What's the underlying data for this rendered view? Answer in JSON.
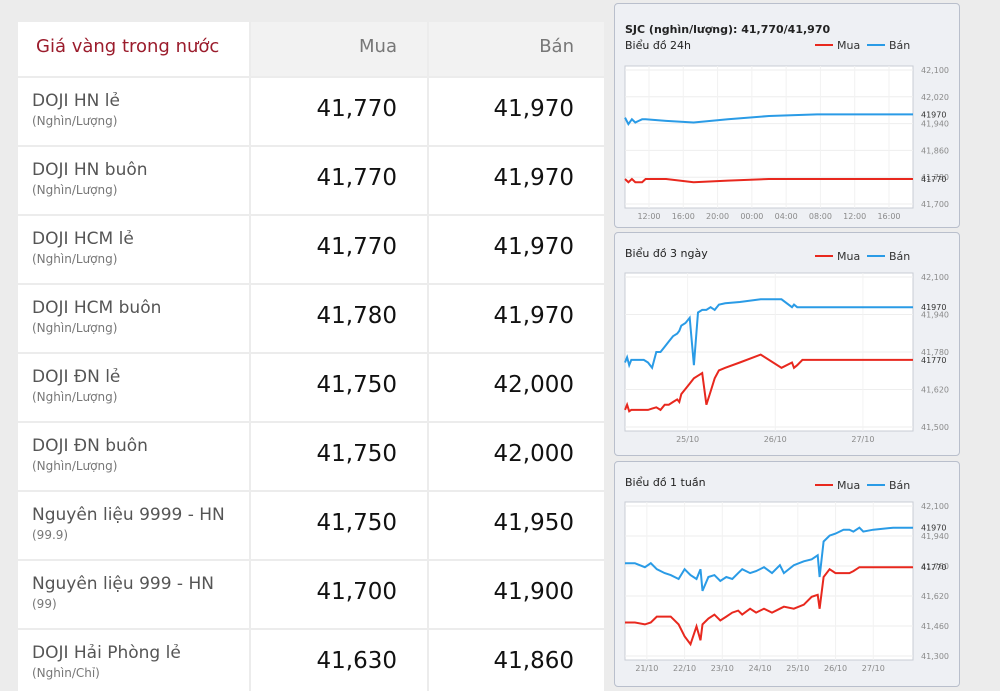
{
  "table": {
    "header": {
      "name": "Giá vàng trong nước",
      "buy": "Mua",
      "sell": "Bán"
    },
    "rows": [
      {
        "name": "DOJI HN lẻ",
        "unit": "(Nghìn/Lượng)",
        "buy": "41,770",
        "sell": "41,970"
      },
      {
        "name": "DOJI HN buôn",
        "unit": "(Nghìn/Lượng)",
        "buy": "41,770",
        "sell": "41,970"
      },
      {
        "name": "DOJI HCM lẻ",
        "unit": "(Nghìn/Lượng)",
        "buy": "41,770",
        "sell": "41,970"
      },
      {
        "name": "DOJI HCM buôn",
        "unit": "(Nghìn/Lượng)",
        "buy": "41,780",
        "sell": "41,970"
      },
      {
        "name": "DOJI ĐN lẻ",
        "unit": "(Nghìn/Lượng)",
        "buy": "41,750",
        "sell": "42,000"
      },
      {
        "name": "DOJI ĐN buôn",
        "unit": "(Nghìn/Lượng)",
        "buy": "41,750",
        "sell": "42,000"
      },
      {
        "name": "Nguyên liệu 9999 - HN",
        "unit": "(99.9)",
        "buy": "41,750",
        "sell": "41,950"
      },
      {
        "name": "Nguyên liệu 999 - HN",
        "unit": "(99)",
        "buy": "41,700",
        "sell": "41,900"
      },
      {
        "name": "DOJI Hải Phòng lẻ",
        "unit": "(Nghìn/Chỉ)",
        "buy": "41,630",
        "sell": "41,860"
      }
    ]
  },
  "colors": {
    "buy": "#e8281e",
    "sell": "#2a9be6",
    "header_red": "#9b1c2c"
  },
  "chart_data": [
    {
      "type": "line",
      "title": "SJC (nghìn/lượng): 41,770/41,970",
      "subtitle": "Biểu đồ 24h",
      "legend": {
        "position": "top-right",
        "items": [
          "Mua",
          "Bán"
        ]
      },
      "x": [
        0,
        1,
        2,
        3,
        4,
        5,
        6,
        12,
        20,
        30,
        42,
        56,
        84
      ],
      "xlim": [
        0,
        84
      ],
      "xticks": [
        {
          "x": 7,
          "label": "12:00"
        },
        {
          "x": 17,
          "label": "16:00"
        },
        {
          "x": 27,
          "label": "20:00"
        },
        {
          "x": 37,
          "label": "00:00"
        },
        {
          "x": 47,
          "label": "04:00"
        },
        {
          "x": 57,
          "label": "08:00"
        },
        {
          "x": 67,
          "label": "12:00"
        },
        {
          "x": 77,
          "label": "16:00"
        }
      ],
      "ylim": [
        41680,
        42120
      ],
      "yticks": [
        "42,100",
        "42,020",
        "41,940",
        "41,860",
        "41,780",
        "41,700"
      ],
      "grid": true,
      "series": [
        {
          "name": "Mua",
          "color": "#e8281e",
          "values": [
            41770,
            41760,
            41770,
            41760,
            41760,
            41760,
            41770,
            41770,
            41760,
            41765,
            41770,
            41770,
            41770
          ],
          "last_label": "41770"
        },
        {
          "name": "Bán",
          "color": "#2a9be6",
          "values": [
            41960,
            41940,
            41955,
            41945,
            41950,
            41955,
            41955,
            41950,
            41945,
            41955,
            41965,
            41970,
            41970
          ],
          "last_label": "41970"
        }
      ]
    },
    {
      "type": "line",
      "subtitle": "Biểu đồ 3 ngày",
      "legend": {
        "position": "top-right",
        "items": [
          "Mua",
          "Bán"
        ]
      },
      "x": [
        0,
        2,
        4,
        6,
        10,
        14,
        18,
        22,
        26,
        30,
        34,
        38,
        42,
        46,
        50,
        52,
        54,
        58,
        62,
        66,
        70,
        74,
        78,
        82,
        86,
        90,
        96,
        110,
        130,
        150,
        160,
        162,
        165,
        170,
        200,
        240,
        276
      ],
      "xlim": [
        0,
        276
      ],
      "xticks": [
        {
          "x": 60,
          "label": "25/10"
        },
        {
          "x": 144,
          "label": "26/10"
        },
        {
          "x": 228,
          "label": "27/10"
        }
      ],
      "ylim": [
        41500,
        42100
      ],
      "yticks": [
        "42,100",
        "41,940",
        "41,780",
        "41,620",
        "41,500"
      ],
      "grid": true,
      "series": [
        {
          "name": "Mua",
          "color": "#e8281e",
          "values": [
            41580,
            41600,
            41575,
            41580,
            41580,
            41580,
            41580,
            41580,
            41585,
            41590,
            41580,
            41600,
            41600,
            41610,
            41620,
            41610,
            41640,
            41660,
            41680,
            41700,
            41710,
            41720,
            41600,
            41650,
            41700,
            41730,
            41740,
            41760,
            41790,
            41740,
            41760,
            41740,
            41750,
            41770,
            41770,
            41770,
            41770
          ],
          "last_label": "41770"
        },
        {
          "name": "Bán",
          "color": "#2a9be6",
          "values": [
            41760,
            41780,
            41750,
            41770,
            41770,
            41770,
            41770,
            41760,
            41740,
            41800,
            41800,
            41820,
            41840,
            41860,
            41870,
            41880,
            41900,
            41910,
            41930,
            41750,
            41950,
            41960,
            41960,
            41970,
            41960,
            41980,
            41985,
            41990,
            42000,
            42000,
            41970,
            41980,
            41970,
            41970,
            41970,
            41970,
            41970
          ],
          "last_label": "41970"
        }
      ]
    },
    {
      "type": "line",
      "subtitle": "Biểu đồ 1 tuần",
      "legend": {
        "position": "top-right",
        "items": [
          "Mua",
          "Bán"
        ]
      },
      "x": [
        0,
        10,
        20,
        26,
        32,
        40,
        46,
        54,
        60,
        66,
        72,
        76,
        78,
        84,
        90,
        96,
        102,
        108,
        114,
        118,
        126,
        132,
        140,
        148,
        156,
        160,
        170,
        180,
        188,
        194,
        196,
        200,
        206,
        212,
        220,
        226,
        230,
        236,
        240,
        250,
        270,
        290
      ],
      "xlim": [
        0,
        290
      ],
      "xticks": [
        {
          "x": 22,
          "label": "21/10"
        },
        {
          "x": 60,
          "label": "22/10"
        },
        {
          "x": 98,
          "label": "23/10"
        },
        {
          "x": 136,
          "label": "24/10"
        },
        {
          "x": 174,
          "label": "25/10"
        },
        {
          "x": 212,
          "label": "26/10"
        },
        {
          "x": 250,
          "label": "27/10"
        }
      ],
      "ylim": [
        41300,
        42100
      ],
      "yticks": [
        "42,100",
        "41,940",
        "41,780",
        "41,620",
        "41,460",
        "41,300"
      ],
      "grid": true,
      "series": [
        {
          "name": "Mua",
          "color": "#e8281e",
          "values": [
            41490,
            41490,
            41480,
            41490,
            41520,
            41520,
            41520,
            41480,
            41420,
            41380,
            41470,
            41400,
            41480,
            41510,
            41530,
            41500,
            41520,
            41540,
            41550,
            41530,
            41560,
            41540,
            41560,
            41540,
            41560,
            41570,
            41560,
            41580,
            41620,
            41630,
            41560,
            41720,
            41760,
            41740,
            41740,
            41740,
            41750,
            41770,
            41770,
            41770,
            41770,
            41770
          ],
          "last_label": "41770"
        },
        {
          "name": "Bán",
          "color": "#2a9be6",
          "values": [
            41790,
            41790,
            41770,
            41790,
            41760,
            41740,
            41730,
            41710,
            41760,
            41730,
            41710,
            41760,
            41650,
            41720,
            41730,
            41700,
            41720,
            41710,
            41740,
            41760,
            41740,
            41750,
            41770,
            41740,
            41780,
            41740,
            41780,
            41800,
            41810,
            41830,
            41720,
            41900,
            41930,
            41940,
            41960,
            41960,
            41950,
            41970,
            41950,
            41960,
            41970,
            41970
          ],
          "last_label": "41970"
        }
      ]
    }
  ]
}
